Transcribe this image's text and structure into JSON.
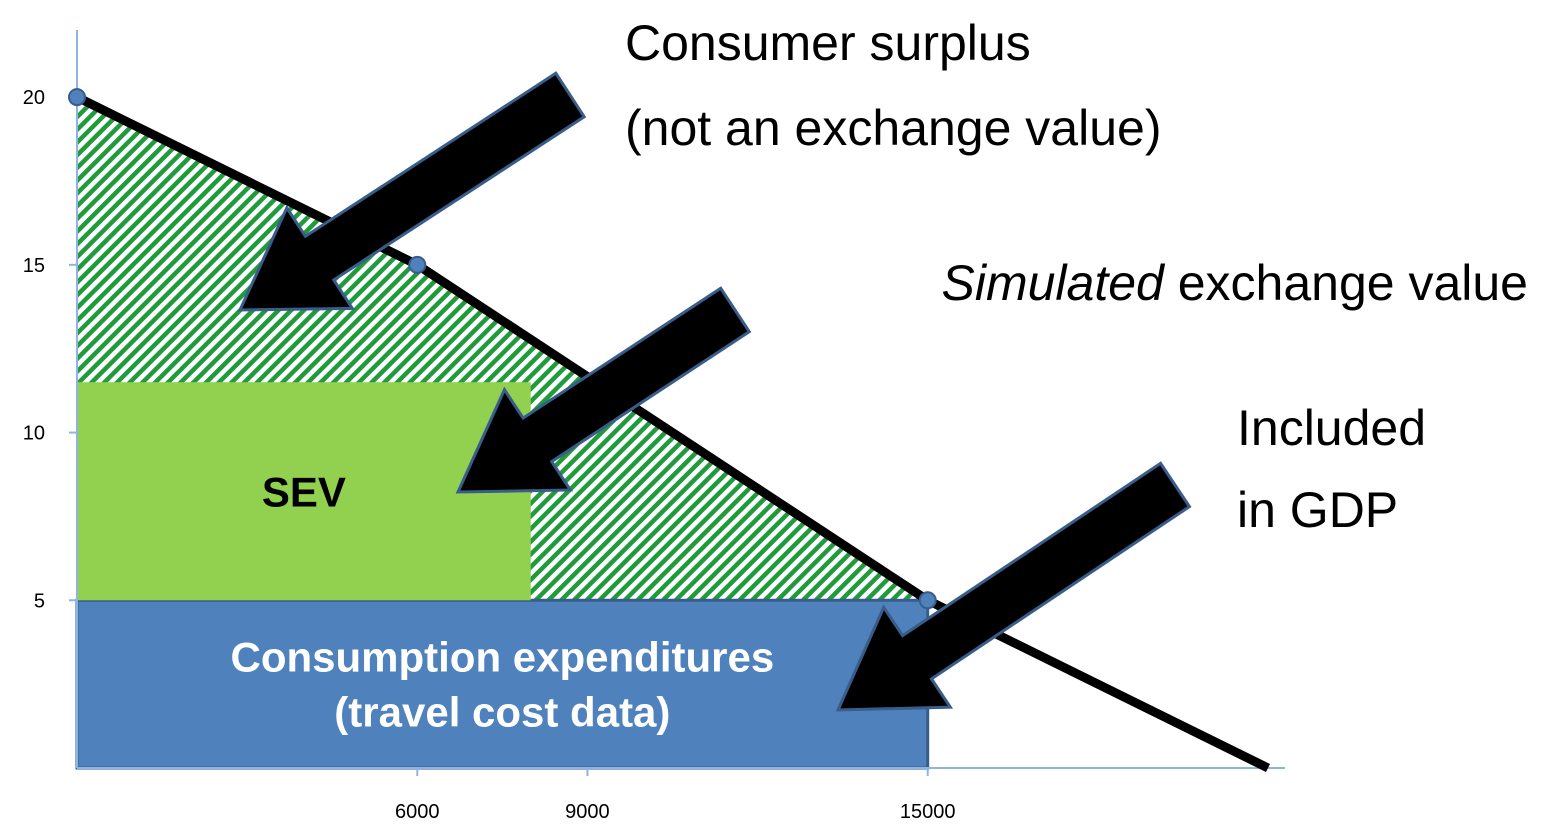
{
  "chart_data": {
    "type": "line",
    "x": [
      0,
      6000,
      15000,
      21000
    ],
    "values": [
      20,
      15,
      5,
      0
    ],
    "xlim": [
      0,
      21300
    ],
    "ylim": [
      0,
      22
    ],
    "xticks": [
      6000,
      9000,
      15000
    ],
    "yticks": [
      5,
      10,
      15,
      20
    ],
    "regions": [
      {
        "lines": [
          "Consumption expenditures",
          "(travel cost data)"
        ],
        "x": 15000,
        "y": 5,
        "color": "#4f81bd"
      },
      {
        "lines": [
          "SEV"
        ],
        "x": 8000,
        "y": 6.5,
        "color": "#92d050"
      }
    ],
    "annotations": [
      {
        "lines": [
          "Consumer surplus",
          "(not an exchange value)"
        ]
      },
      {
        "lines": [
          "Simulated",
          " exchange value"
        ]
      },
      {
        "lines": [
          "Included",
          "in GDP"
        ]
      }
    ]
  }
}
